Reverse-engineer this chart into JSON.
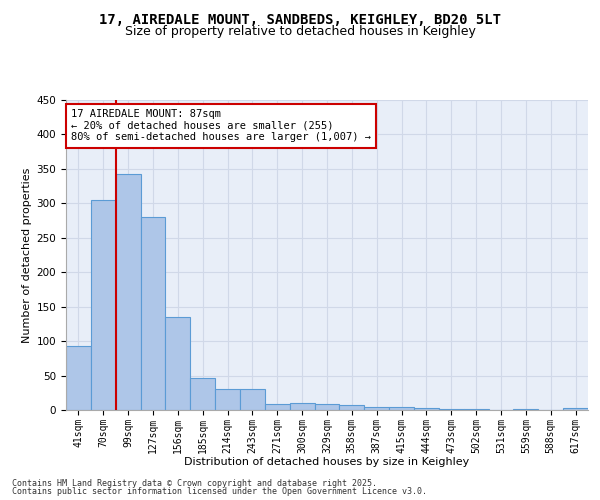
{
  "title_line1": "17, AIREDALE MOUNT, SANDBEDS, KEIGHLEY, BD20 5LT",
  "title_line2": "Size of property relative to detached houses in Keighley",
  "xlabel": "Distribution of detached houses by size in Keighley",
  "ylabel": "Number of detached properties",
  "categories": [
    "41sqm",
    "70sqm",
    "99sqm",
    "127sqm",
    "156sqm",
    "185sqm",
    "214sqm",
    "243sqm",
    "271sqm",
    "300sqm",
    "329sqm",
    "358sqm",
    "387sqm",
    "415sqm",
    "444sqm",
    "473sqm",
    "502sqm",
    "531sqm",
    "559sqm",
    "588sqm",
    "617sqm"
  ],
  "values": [
    93,
    305,
    343,
    280,
    135,
    47,
    31,
    31,
    9,
    10,
    8,
    7,
    4,
    4,
    3,
    1,
    1,
    0,
    1,
    0,
    3
  ],
  "bar_color": "#aec6e8",
  "bar_edge_color": "#5b9bd5",
  "bar_edge_width": 0.8,
  "vline_color": "#cc0000",
  "annotation_text": "17 AIREDALE MOUNT: 87sqm\n← 20% of detached houses are smaller (255)\n80% of semi-detached houses are larger (1,007) →",
  "annotation_box_color": "#ffffff",
  "annotation_box_edge_color": "#cc0000",
  "ylim": [
    0,
    450
  ],
  "yticks": [
    0,
    50,
    100,
    150,
    200,
    250,
    300,
    350,
    400,
    450
  ],
  "background_color": "#e8eef8",
  "grid_color": "#d0d8e8",
  "footer_line1": "Contains HM Land Registry data © Crown copyright and database right 2025.",
  "footer_line2": "Contains public sector information licensed under the Open Government Licence v3.0.",
  "title_fontsize": 10,
  "subtitle_fontsize": 9,
  "axis_label_fontsize": 8,
  "tick_fontsize": 7,
  "annotation_fontsize": 7.5,
  "footer_fontsize": 6
}
